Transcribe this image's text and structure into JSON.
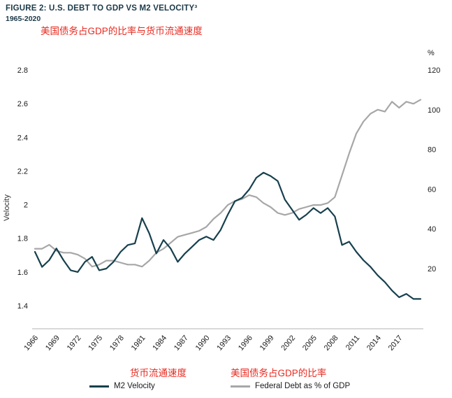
{
  "header": {
    "title": "FIGURE 2: U.S. DEBT TO GDP VS M2 VELOCITY³",
    "subtitle": "1965-2020",
    "title_zh": "美国债务占GDP的比率与货币流通速度"
  },
  "colors": {
    "navy": "#1b3948",
    "red": "#e8291f",
    "m2_line": "#16404d",
    "debt_line": "#a7a7a7",
    "axis_text": "#1a1a1a"
  },
  "chart_data": {
    "type": "line",
    "title": "U.S. Debt to GDP vs M2 Velocity",
    "grid": false,
    "legend_position": "bottom",
    "x": [
      1966,
      1967,
      1968,
      1969,
      1970,
      1971,
      1972,
      1973,
      1974,
      1975,
      1976,
      1977,
      1978,
      1979,
      1980,
      1981,
      1982,
      1983,
      1984,
      1985,
      1986,
      1987,
      1988,
      1989,
      1990,
      1991,
      1992,
      1993,
      1994,
      1995,
      1996,
      1997,
      1998,
      1999,
      2000,
      2001,
      2002,
      2003,
      2004,
      2005,
      2006,
      2007,
      2008,
      2009,
      2010,
      2011,
      2012,
      2013,
      2014,
      2015,
      2016,
      2017,
      2018,
      2019,
      2020
    ],
    "x_ticks": [
      1966,
      1969,
      1972,
      1975,
      1978,
      1981,
      1984,
      1987,
      1990,
      1993,
      1996,
      1999,
      2002,
      2005,
      2008,
      2011,
      2014,
      2017
    ],
    "left_axis": {
      "label": "Velocity",
      "ticks": [
        1.4,
        1.6,
        1.8,
        2,
        2.2,
        2.4,
        2.6,
        2.8
      ],
      "min": 1.26,
      "max": 2.8
    },
    "right_axis": {
      "label": "%",
      "ticks": [
        20,
        40,
        60,
        80,
        100,
        120
      ],
      "min": 0,
      "max": 120
    },
    "series": [
      {
        "name": "M2 Velocity",
        "label_zh": "货币流通速度",
        "axis": "left",
        "color": "#16404d",
        "values": [
          1.72,
          1.63,
          1.67,
          1.74,
          1.67,
          1.61,
          1.6,
          1.66,
          1.69,
          1.61,
          1.62,
          1.66,
          1.72,
          1.76,
          1.77,
          1.92,
          1.83,
          1.71,
          1.79,
          1.74,
          1.66,
          1.71,
          1.75,
          1.79,
          1.81,
          1.79,
          1.85,
          1.94,
          2.02,
          2.04,
          2.09,
          2.16,
          2.19,
          2.17,
          2.14,
          2.03,
          1.97,
          1.91,
          1.94,
          1.98,
          1.95,
          1.98,
          1.93,
          1.76,
          1.78,
          1.72,
          1.67,
          1.63,
          1.58,
          1.54,
          1.49,
          1.45,
          1.47,
          1.44,
          1.44
        ]
      },
      {
        "name": "Federal Debt as % of GDP",
        "label_zh": "美国债务占GDP的比率",
        "axis": "right",
        "color": "#a7a7a7",
        "values": [
          30,
          30,
          32,
          29,
          28,
          28,
          27,
          25,
          21,
          22,
          24,
          24,
          23,
          22,
          22,
          21,
          24,
          28,
          30,
          33,
          36,
          37,
          38,
          39,
          41,
          45,
          48,
          52,
          54,
          55,
          57,
          56,
          53,
          51,
          48,
          47,
          48,
          50,
          51,
          52,
          52,
          53,
          56,
          67,
          78,
          88,
          94,
          98,
          100,
          99,
          104,
          101,
          104,
          103,
          105
        ]
      }
    ]
  }
}
